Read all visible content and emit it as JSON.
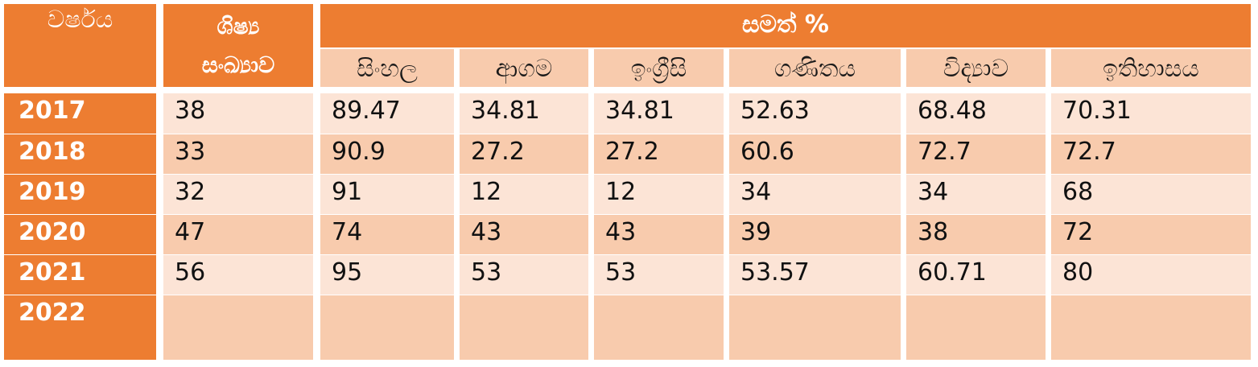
{
  "header": {
    "year_label": "වර්ෂය",
    "students_line1": "ශිෂ්‍ය",
    "students_line2": "සංඛ්‍යාව",
    "average_label": "සමත් %"
  },
  "subjects": [
    "සිංහල",
    "ආගම",
    "ඉංග්‍රීසි",
    "ගණිතය",
    "විද්‍යාව",
    "ඉතිහාසය"
  ],
  "rows": [
    {
      "year": "2017",
      "students": "38",
      "values": [
        "89.47",
        "34.81",
        "34.81",
        "52.63",
        "68.48",
        "70.31"
      ]
    },
    {
      "year": "2018",
      "students": "33",
      "values": [
        "90.9",
        "27.2",
        "27.2",
        "60.6",
        "72.7",
        "72.7"
      ]
    },
    {
      "year": "2019",
      "students": "32",
      "values": [
        "91",
        "12",
        "12",
        "34",
        "34",
        "68"
      ]
    },
    {
      "year": "2020",
      "students": "47",
      "values": [
        "74",
        "43",
        "43",
        "39",
        "38",
        "72"
      ]
    },
    {
      "year": "2021",
      "students": "56",
      "values": [
        "95",
        "53",
        "53",
        "53.57",
        "60.71",
        "80"
      ]
    },
    {
      "year": "2022",
      "students": "",
      "values": [
        "",
        "",
        "",
        "",
        "",
        ""
      ]
    }
  ],
  "colors": {
    "header": "#ed7d31",
    "row_light": "#fce4d6",
    "row_dark": "#f8cbad"
  }
}
